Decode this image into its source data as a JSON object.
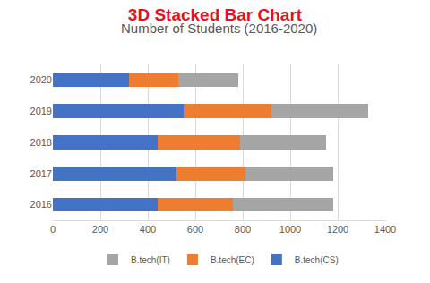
{
  "chart_data": {
    "type": "bar",
    "title": "3D Stacked Bar Chart",
    "subtitle": "Number of Students (2016-2020)",
    "orientation": "horizontal",
    "stacked": true,
    "grid": true,
    "legend": "bottom",
    "categories": [
      "2016",
      "2017",
      "2018",
      "2019",
      "2020"
    ],
    "series": [
      {
        "name": "B.tech(CS)",
        "color": "#4472c4",
        "values": [
          440,
          520,
          440,
          550,
          320
        ]
      },
      {
        "name": "B.tech(EC)",
        "color": "#ed7d31",
        "values": [
          320,
          290,
          350,
          370,
          210
        ]
      },
      {
        "name": "B.tech(IT)",
        "color": "#a5a5a5",
        "values": [
          420,
          370,
          360,
          410,
          250
        ]
      }
    ],
    "xlim": [
      0,
      1400
    ],
    "xticks": [
      0,
      200,
      400,
      600,
      800,
      1000,
      1200,
      1400
    ]
  }
}
